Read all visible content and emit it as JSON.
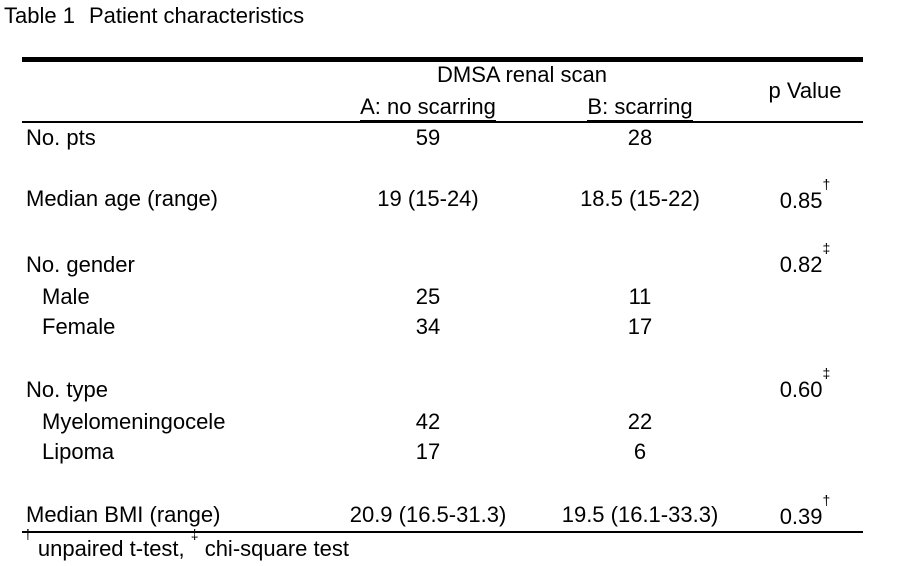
{
  "table": {
    "label": "Table 1",
    "caption": "Patient characteristics",
    "group_header": "DMSA renal scan",
    "col_a": "A: no scarring",
    "col_b": "B: scarring",
    "col_p": "p Value",
    "rows": [
      {
        "label": "No. pts",
        "a": "59",
        "b": "28",
        "p": "",
        "mark": ""
      },
      {
        "label": "Median age (range)",
        "a": "19 (15-24)",
        "b": "18.5 (15-22)",
        "p": "0.85",
        "mark": "†"
      },
      {
        "label": "No. gender",
        "a": "",
        "b": "",
        "p": "0.82",
        "mark": "‡"
      },
      {
        "label": "Male",
        "a": "25",
        "b": "11",
        "p": "",
        "mark": ""
      },
      {
        "label": "Female",
        "a": "34",
        "b": "17",
        "p": "",
        "mark": ""
      },
      {
        "label": "No. type",
        "a": "",
        "b": "",
        "p": "0.60",
        "mark": "‡"
      },
      {
        "label": "Myelomeningocele",
        "a": "42",
        "b": "22",
        "p": "",
        "mark": ""
      },
      {
        "label": "Lipoma",
        "a": "17",
        "b": "6",
        "p": "",
        "mark": ""
      },
      {
        "label": "Median BMI (range)",
        "a": "20.9 (16.5-31.3)",
        "b": "19.5 (16.1-33.3)",
        "p": "0.39",
        "mark": "†"
      }
    ],
    "footnote": {
      "mark1": "†",
      "text1": " unpaired t-test, ",
      "mark2": "‡",
      "text2": " chi-square test"
    }
  }
}
